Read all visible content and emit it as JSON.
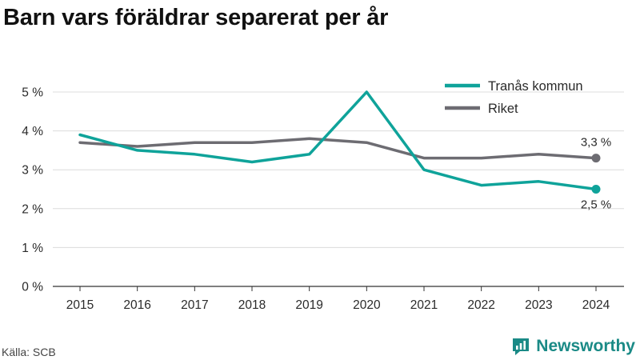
{
  "title": "Barn vars föräldrar separerat per år",
  "source": "Källa: SCB",
  "brand": {
    "name": "Newsworthy",
    "icon": "newsworthy-logo-icon",
    "color": "#1a8a86"
  },
  "chart_data": {
    "type": "line",
    "title": "Barn vars föräldrar separerat per år",
    "x": [
      "2015",
      "2016",
      "2017",
      "2018",
      "2019",
      "2020",
      "2021",
      "2022",
      "2023",
      "2024"
    ],
    "y_ticks": [
      0,
      1,
      2,
      3,
      4,
      5
    ],
    "y_tick_labels": [
      "0 %",
      "1 %",
      "2 %",
      "3 %",
      "4 %",
      "5 %"
    ],
    "ylim": [
      0,
      5
    ],
    "grid": true,
    "legend_position": "top-right",
    "series": [
      {
        "name": "Tranås kommun",
        "color": "#0fa39a",
        "values": [
          3.9,
          3.5,
          3.4,
          3.2,
          3.4,
          5.0,
          3.0,
          2.6,
          2.7,
          2.5
        ],
        "end_label": "2,5 %"
      },
      {
        "name": "Riket",
        "color": "#6d6c72",
        "values": [
          3.7,
          3.6,
          3.7,
          3.7,
          3.8,
          3.7,
          3.3,
          3.3,
          3.4,
          3.3
        ],
        "end_label": "3,3 %"
      }
    ]
  }
}
